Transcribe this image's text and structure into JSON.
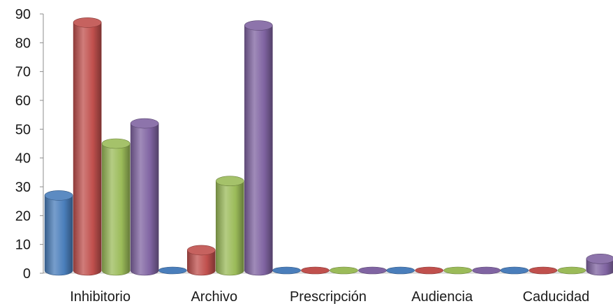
{
  "chart_data": {
    "type": "bar",
    "style": "3d-cylinder",
    "categories": [
      "Inhibitorio",
      "Archivo",
      "Prescripción",
      "Audiencia",
      "Caducidad"
    ],
    "series": [
      {
        "values": [
          27,
          0,
          0,
          0,
          0
        ],
        "color": "#4a7ebb"
      },
      {
        "values": [
          87,
          8,
          0,
          0,
          0
        ],
        "color": "#c0504d"
      },
      {
        "values": [
          45,
          32,
          0,
          0,
          0
        ],
        "color": "#9bbb59"
      },
      {
        "values": [
          52,
          86,
          0,
          0,
          5
        ],
        "color": "#8064a2"
      }
    ],
    "ylim": [
      0,
      90
    ],
    "yticks": [
      0,
      10,
      20,
      30,
      40,
      50,
      60,
      70,
      80,
      90
    ],
    "grid": false,
    "legend": "none"
  }
}
